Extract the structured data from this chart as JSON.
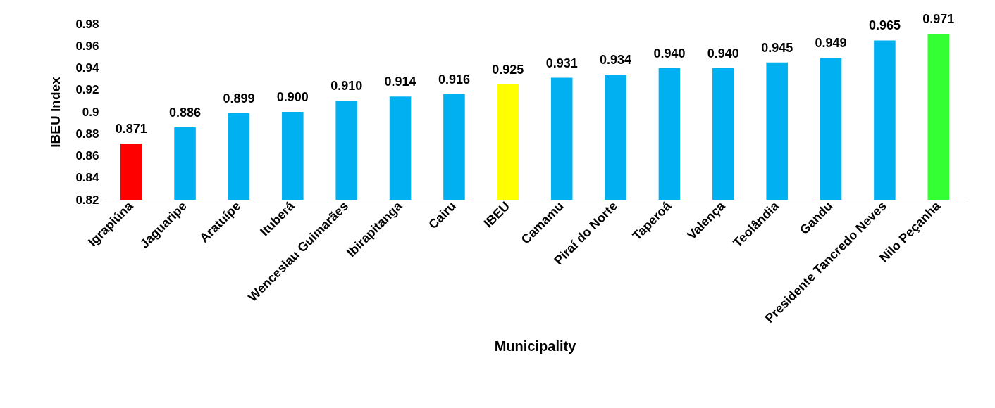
{
  "chart_data": {
    "type": "bar",
    "xlabel": "Municipality",
    "ylabel": "IBEU Index",
    "categories": [
      "Igrapiúna",
      "Jaguaripe",
      "Aratuípe",
      "Ituberá",
      "Wenceslau Guimarães",
      "Ibirapitanga",
      "Cairu",
      "IBEU",
      "Camamu",
      "Piraí do Norte",
      "Taperoá",
      "Valença",
      "Teolândia",
      "Gandu",
      "Presidente Tancredo Neves",
      "Nilo Peçanha"
    ],
    "values": [
      0.871,
      0.886,
      0.899,
      0.9,
      0.91,
      0.914,
      0.916,
      0.925,
      0.931,
      0.934,
      0.94,
      0.94,
      0.945,
      0.949,
      0.965,
      0.971
    ],
    "value_labels": [
      "0.871",
      "0.886",
      "0.899",
      "0.900",
      "0.910",
      "0.914",
      "0.916",
      "0.925",
      "0.931",
      "0.934",
      "0.940",
      "0.940",
      "0.945",
      "0.949",
      "0.965",
      "0.971"
    ],
    "colors": [
      "#ff0000",
      "#00b0f0",
      "#00b0f0",
      "#00b0f0",
      "#00b0f0",
      "#00b0f0",
      "#00b0f0",
      "#ffff00",
      "#00b0f0",
      "#00b0f0",
      "#00b0f0",
      "#00b0f0",
      "#00b0f0",
      "#00b0f0",
      "#00b0f0",
      "#33ff33"
    ],
    "ylim": [
      0.82,
      0.98
    ],
    "yticks": [
      0.82,
      0.84,
      0.86,
      0.88,
      0.9,
      0.92,
      0.94,
      0.96,
      0.98
    ],
    "grid": false
  }
}
